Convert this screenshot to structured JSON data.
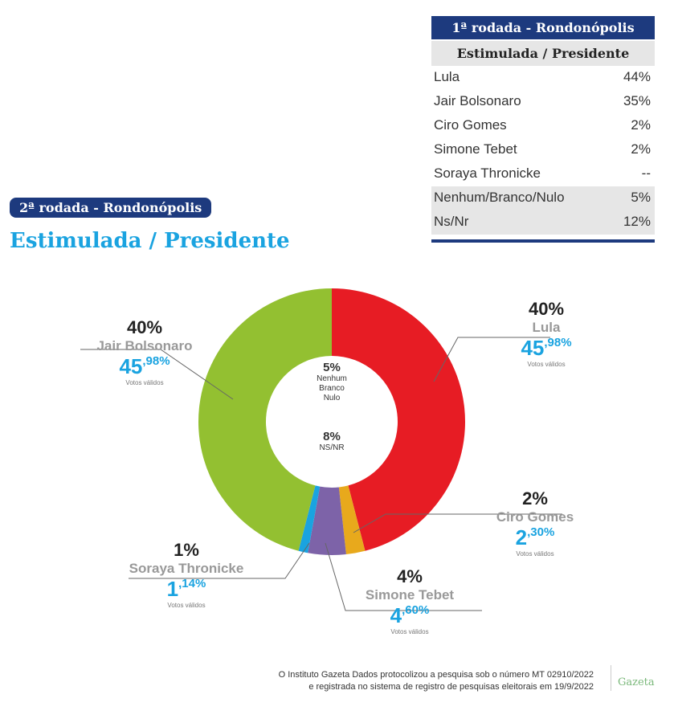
{
  "table1": {
    "title": "1ª rodada - Rondonópolis",
    "subtitle": "Estimulada / Presidente",
    "rows": [
      {
        "name": "Lula",
        "value": "44%"
      },
      {
        "name": "Jair Bolsonaro",
        "value": "35%"
      },
      {
        "name": "Ciro Gomes",
        "value": "2%"
      },
      {
        "name": "Simone Tebet",
        "value": "2%"
      },
      {
        "name": "Soraya Thronicke",
        "value": "--"
      },
      {
        "name": "Nenhum/Branco/Nulo",
        "value": "5%"
      },
      {
        "name": "Ns/Nr",
        "value": "12%"
      }
    ]
  },
  "chart_data": {
    "type": "pie",
    "donut": true,
    "badge": "2ª rodada - Rondonópolis",
    "title": "Estimulada / Presidente",
    "valid_label": "Votos válidos",
    "slices": [
      {
        "name": "Lula",
        "percent": "40%",
        "valid_int": "45",
        "valid_dec": ",98%",
        "valid": 45.98,
        "color": "#e71c24"
      },
      {
        "name": "Ciro Gomes",
        "percent": "2%",
        "valid_int": "2",
        "valid_dec": ",30%",
        "valid": 2.3,
        "color": "#e8a91c"
      },
      {
        "name": "Simone Tebet",
        "percent": "4%",
        "valid_int": "4",
        "valid_dec": ",60%",
        "valid": 4.6,
        "color": "#7d63a8"
      },
      {
        "name": "Soraya Thronicke",
        "percent": "1%",
        "valid_int": "1",
        "valid_dec": ",14%",
        "valid": 1.14,
        "color": "#1aa3e0"
      },
      {
        "name": "Jair Bolsonaro",
        "percent": "40%",
        "valid_int": "45",
        "valid_dec": ",98%",
        "valid": 45.98,
        "color": "#93c031"
      }
    ],
    "center": {
      "nulo_pct": "5%",
      "nulo_l1": "Nenhum",
      "nulo_l2": "Branco",
      "nulo_l3": "Nulo",
      "nsnr_pct": "8%",
      "nsnr_label": "NS/NR"
    }
  },
  "footer": {
    "line1": "O Instituto Gazeta Dados protocolizou a pesquisa sob o número MT 02910/2022",
    "line2": "e registrada no sistema de registro de pesquisas eleitorais em 19/9/2022",
    "logo": "Gazeta"
  }
}
